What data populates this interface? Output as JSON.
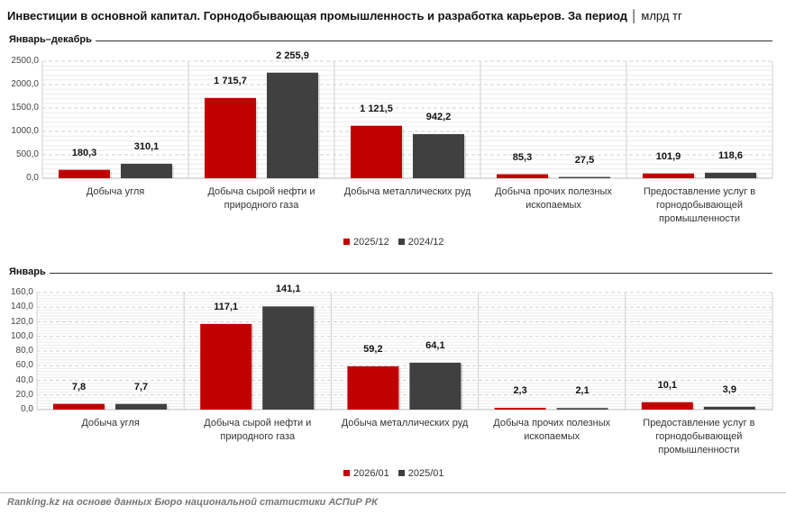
{
  "title": "Инвестиции в основной капитал. Горнодобывающая промышленность и разработка карьеров. За период",
  "unit": "млрд тг",
  "colors": {
    "current": "#c00000",
    "previous": "#404040"
  },
  "footer": "Ranking.kz на основе данных Бюро национальной статистики АСПиР РК",
  "chart_data": [
    {
      "type": "bar",
      "section_title": "Январь–декабрь",
      "categories": [
        "Добыча угля",
        "Добыча сырой нефти и природного газа",
        "Добыча металлических руд",
        "Добыча прочих полезных ископаемых",
        "Предоставление услуг в горнодобывающей промышленности"
      ],
      "series": [
        {
          "name": "2025/12",
          "values": [
            180.3,
            1715.7,
            1121.5,
            85.3,
            101.9
          ],
          "labels": [
            "180,3",
            "1 715,7",
            "1 121,5",
            "85,3",
            "101,9"
          ]
        },
        {
          "name": "2024/12",
          "values": [
            310.1,
            2255.9,
            942.2,
            27.5,
            118.6
          ],
          "labels": [
            "310,1",
            "2 255,9",
            "942,2",
            "27,5",
            "118,6"
          ]
        }
      ],
      "ylim": [
        0,
        2500
      ],
      "yticks": [
        "0,0",
        "500,0",
        "1000,0",
        "1500,0",
        "2000,0",
        "2500,0"
      ],
      "grid": true,
      "legend": "bottom"
    },
    {
      "type": "bar",
      "section_title": "Январь",
      "categories": [
        "Добыча угля",
        "Добыча сырой нефти и природного газа",
        "Добыча металлических руд",
        "Добыча прочих полезных ископаемых",
        "Предоставление услуг в горнодобывающей промышленности"
      ],
      "series": [
        {
          "name": "2026/01",
          "values": [
            7.8,
            117.1,
            59.2,
            2.3,
            10.1
          ],
          "labels": [
            "7,8",
            "117,1",
            "59,2",
            "2,3",
            "10,1"
          ]
        },
        {
          "name": "2025/01",
          "values": [
            7.7,
            141.1,
            64.1,
            2.1,
            3.9
          ],
          "labels": [
            "7,7",
            "141,1",
            "64,1",
            "2,1",
            "3,9"
          ]
        }
      ],
      "ylim": [
        0,
        160
      ],
      "yticks": [
        "0,0",
        "20,0",
        "40,0",
        "60,0",
        "80,0",
        "100,0",
        "120,0",
        "140,0",
        "160,0"
      ],
      "grid": true,
      "legend": "bottom"
    }
  ]
}
